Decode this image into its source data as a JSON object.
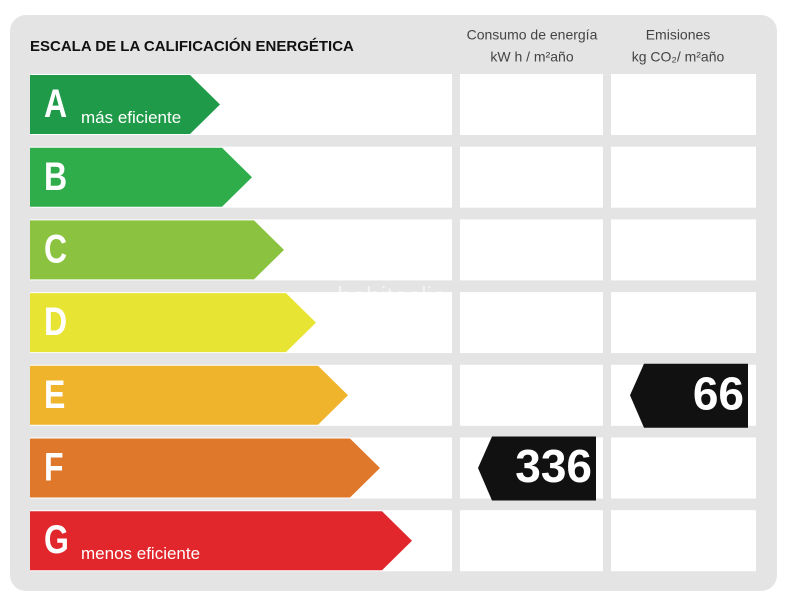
{
  "header": {
    "title": "ESCALA DE LA CALIFICACIÓN ENERGÉTICA",
    "columns": [
      {
        "title": "Consumo de energía",
        "unit": "kW h / m²año"
      },
      {
        "title": "Emisiones",
        "unit": "kg CO₂/ m²año"
      }
    ]
  },
  "watermark": "habitaclia",
  "rows": [
    {
      "letter": "A",
      "label": "más eficiente",
      "color": "#1f9a48"
    },
    {
      "letter": "B",
      "letter_only": true,
      "color": "#2fad4a"
    },
    {
      "letter": "C",
      "color": "#8bc340"
    },
    {
      "letter": "D",
      "color": "#e8e433"
    },
    {
      "letter": "E",
      "color": "#efb42b",
      "emissions": 66
    },
    {
      "letter": "F",
      "color": "#e0782c",
      "consumption": 336
    },
    {
      "letter": "G",
      "label": "menos eficiente",
      "color": "#e1262c"
    }
  ]
}
